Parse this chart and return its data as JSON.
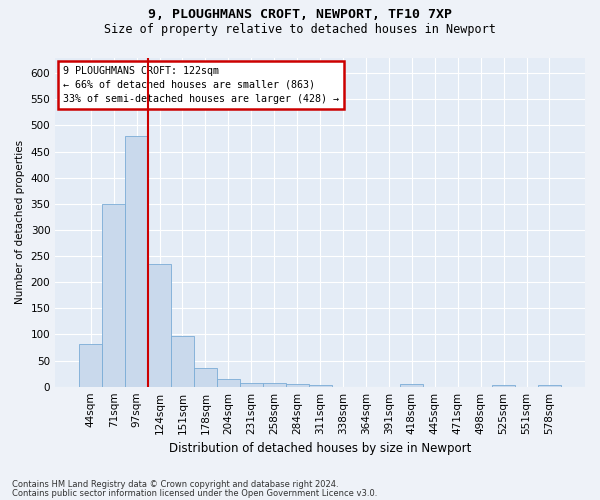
{
  "title1": "9, PLOUGHMANS CROFT, NEWPORT, TF10 7XP",
  "title2": "Size of property relative to detached houses in Newport",
  "xlabel": "Distribution of detached houses by size in Newport",
  "ylabel": "Number of detached properties",
  "categories": [
    "44sqm",
    "71sqm",
    "97sqm",
    "124sqm",
    "151sqm",
    "178sqm",
    "204sqm",
    "231sqm",
    "258sqm",
    "284sqm",
    "311sqm",
    "338sqm",
    "364sqm",
    "391sqm",
    "418sqm",
    "445sqm",
    "471sqm",
    "498sqm",
    "525sqm",
    "551sqm",
    "578sqm"
  ],
  "values": [
    82,
    350,
    480,
    235,
    97,
    35,
    15,
    8,
    8,
    5,
    3,
    0,
    0,
    0,
    5,
    0,
    0,
    0,
    3,
    0,
    3
  ],
  "bar_color": "#c9d9ec",
  "bar_edge_color": "#7aacd6",
  "vline_index": 3,
  "vline_color": "#cc0000",
  "annotation_box_color": "#cc0000",
  "annotation_lines": [
    "9 PLOUGHMANS CROFT: 122sqm",
    "← 66% of detached houses are smaller (863)",
    "33% of semi-detached houses are larger (428) →"
  ],
  "ylim": [
    0,
    630
  ],
  "yticks": [
    0,
    50,
    100,
    150,
    200,
    250,
    300,
    350,
    400,
    450,
    500,
    550,
    600
  ],
  "footer1": "Contains HM Land Registry data © Crown copyright and database right 2024.",
  "footer2": "Contains public sector information licensed under the Open Government Licence v3.0.",
  "bg_color": "#eef2f8",
  "plot_bg_color": "#e4ecf6"
}
